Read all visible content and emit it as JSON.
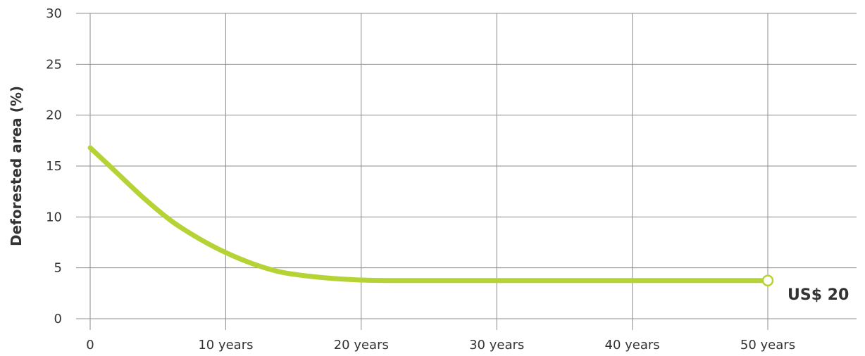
{
  "chart_data": {
    "type": "line",
    "title": "",
    "xlabel": "",
    "ylabel": "Deforested area (%)",
    "xlim": [
      0,
      50
    ],
    "ylim": [
      0,
      30
    ],
    "grid": true,
    "legend": "none",
    "x_ticks": [
      {
        "value": 0,
        "label": "0"
      },
      {
        "value": 10,
        "label": "10 years"
      },
      {
        "value": 20,
        "label": "20 years"
      },
      {
        "value": 30,
        "label": "30 years"
      },
      {
        "value": 40,
        "label": "40 years"
      },
      {
        "value": 50,
        "label": "50 years"
      }
    ],
    "y_ticks": [
      {
        "value": 0,
        "label": "0"
      },
      {
        "value": 5,
        "label": "5"
      },
      {
        "value": 10,
        "label": "10"
      },
      {
        "value": 15,
        "label": "15"
      },
      {
        "value": 20,
        "label": "20"
      },
      {
        "value": 25,
        "label": "25"
      },
      {
        "value": 30,
        "label": "30"
      }
    ],
    "series": [
      {
        "color": "#b5d334",
        "x": [
          0,
          2,
          4,
          6,
          8,
          10,
          12,
          14,
          16,
          18,
          20,
          22,
          25,
          30,
          35,
          40,
          45,
          50
        ],
        "y": [
          16.8,
          14.3,
          11.8,
          9.6,
          7.9,
          6.5,
          5.4,
          4.6,
          4.2,
          3.95,
          3.8,
          3.75,
          3.75,
          3.75,
          3.75,
          3.75,
          3.75,
          3.75
        ]
      }
    ],
    "end_label": "US$ 20",
    "grid_color": "#8c8c8c",
    "text_color": "#333333"
  }
}
